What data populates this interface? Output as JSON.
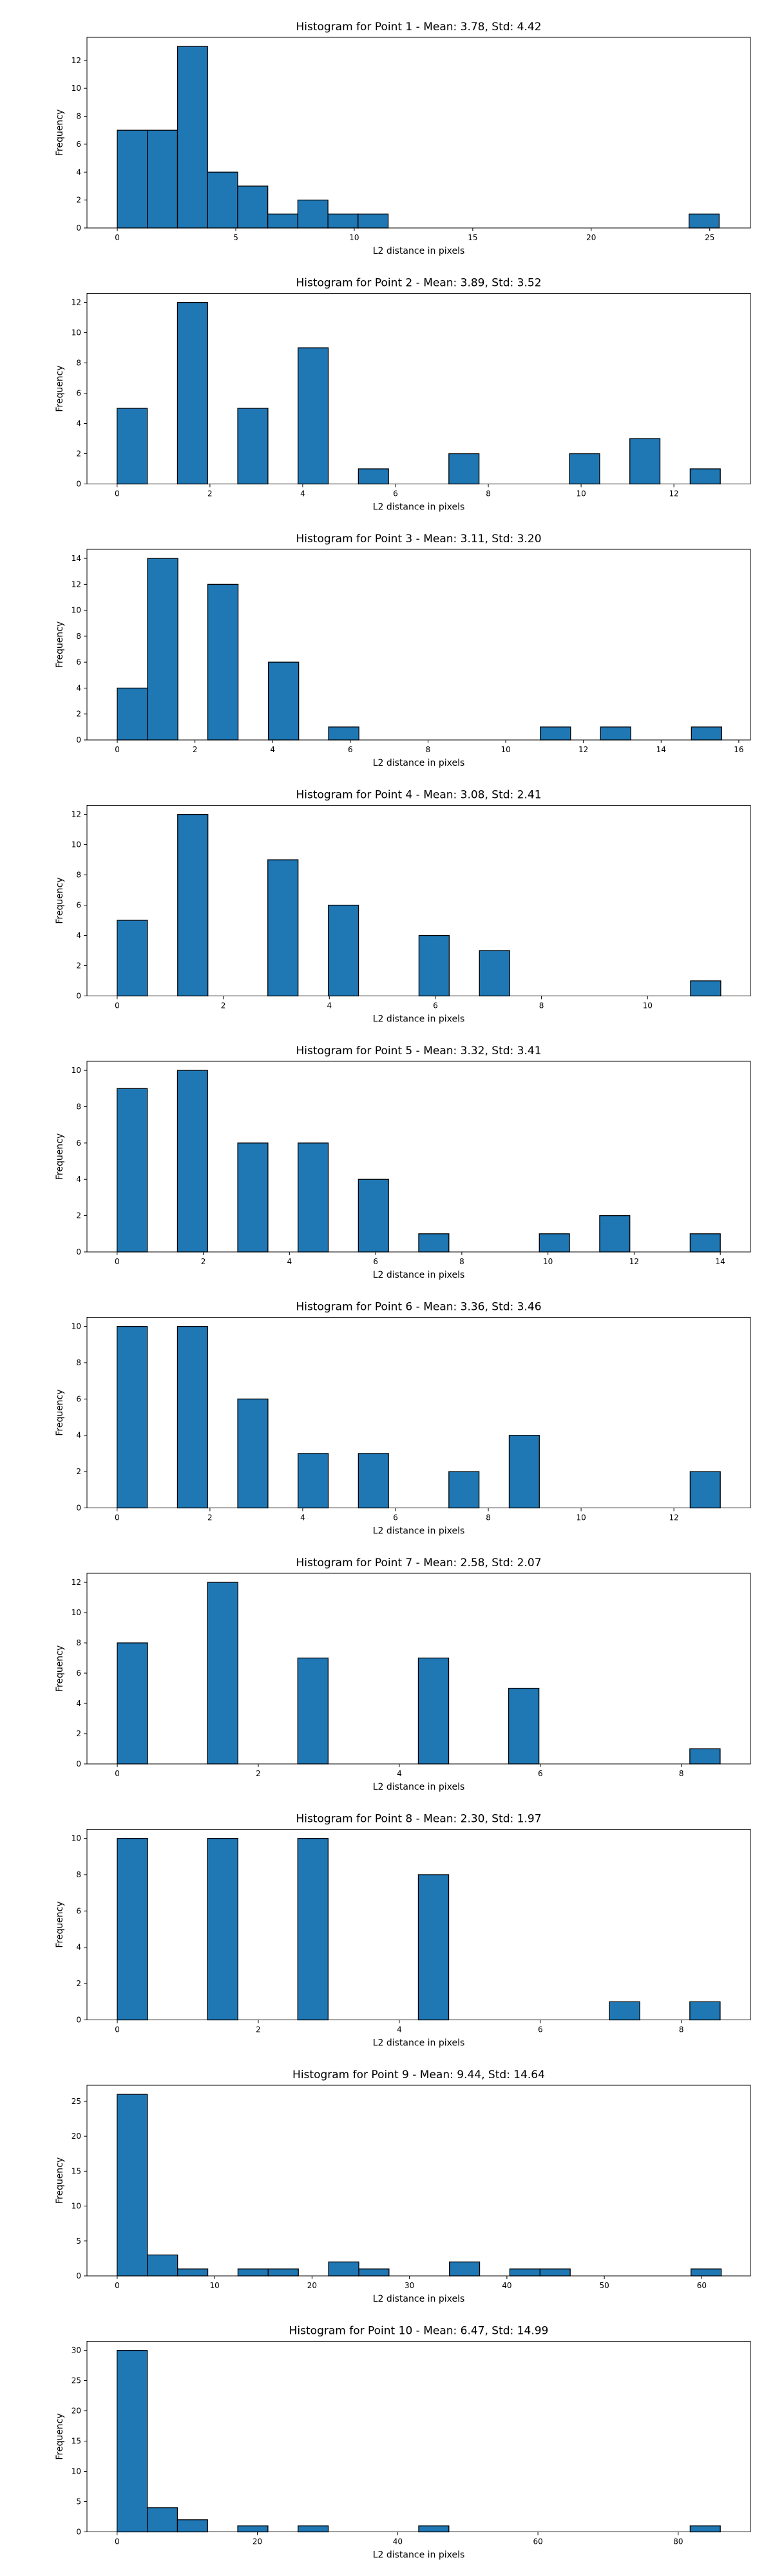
{
  "chart_data": [
    {
      "type": "bar",
      "title": "Histogram for Point 1 - Mean: 3.78, Std: 4.42",
      "xlabel": "L2 distance in pixels",
      "ylabel": "Frequency",
      "xlim": [
        -1.28,
        26.72
      ],
      "ylim": [
        0,
        13.65
      ],
      "xticks": [
        0,
        5,
        10,
        15,
        20,
        25
      ],
      "yticks": [
        0,
        2,
        4,
        6,
        8,
        10,
        12
      ],
      "bar_color": "#1f77b4",
      "edge_color": "#000000",
      "bins": [
        {
          "x0": 0.0,
          "x1": 1.27,
          "count": 7
        },
        {
          "x0": 1.27,
          "x1": 2.54,
          "count": 7
        },
        {
          "x0": 2.54,
          "x1": 3.81,
          "count": 13
        },
        {
          "x0": 3.81,
          "x1": 5.08,
          "count": 4
        },
        {
          "x0": 5.08,
          "x1": 6.35,
          "count": 3
        },
        {
          "x0": 6.35,
          "x1": 7.62,
          "count": 1
        },
        {
          "x0": 7.62,
          "x1": 8.89,
          "count": 2
        },
        {
          "x0": 8.89,
          "x1": 10.16,
          "count": 1
        },
        {
          "x0": 10.16,
          "x1": 11.43,
          "count": 1
        },
        {
          "x0": 24.13,
          "x1": 25.4,
          "count": 1
        }
      ]
    },
    {
      "type": "bar",
      "title": "Histogram for Point 2 - Mean: 3.89, Std: 3.52",
      "xlabel": "L2 distance in pixels",
      "ylabel": "Frequency",
      "xlim": [
        -0.65,
        13.65
      ],
      "ylim": [
        0,
        12.6
      ],
      "xticks": [
        0,
        2,
        4,
        6,
        8,
        10,
        12
      ],
      "yticks": [
        0,
        2,
        4,
        6,
        8,
        10,
        12
      ],
      "bar_color": "#1f77b4",
      "edge_color": "#000000",
      "bins": [
        {
          "x0": 0.0,
          "x1": 0.65,
          "count": 5
        },
        {
          "x0": 1.3,
          "x1": 1.95,
          "count": 12
        },
        {
          "x0": 2.6,
          "x1": 3.25,
          "count": 5
        },
        {
          "x0": 3.9,
          "x1": 4.55,
          "count": 9
        },
        {
          "x0": 5.2,
          "x1": 5.85,
          "count": 1
        },
        {
          "x0": 7.15,
          "x1": 7.8,
          "count": 2
        },
        {
          "x0": 9.75,
          "x1": 10.4,
          "count": 2
        },
        {
          "x0": 11.05,
          "x1": 11.7,
          "count": 3
        },
        {
          "x0": 12.35,
          "x1": 13.0,
          "count": 1
        }
      ]
    },
    {
      "type": "bar",
      "title": "Histogram for Point 3 - Mean: 3.11, Std: 3.20",
      "xlabel": "L2 distance in pixels",
      "ylabel": "Frequency",
      "xlim": [
        -0.78,
        16.3
      ],
      "ylim": [
        0,
        14.7
      ],
      "xticks": [
        0,
        2,
        4,
        6,
        8,
        10,
        12,
        14,
        16
      ],
      "yticks": [
        0,
        2,
        4,
        6,
        8,
        10,
        12,
        14
      ],
      "bar_color": "#1f77b4",
      "edge_color": "#000000",
      "bins": [
        {
          "x0": 0.0,
          "x1": 0.78,
          "count": 4
        },
        {
          "x0": 0.78,
          "x1": 1.56,
          "count": 14
        },
        {
          "x0": 2.33,
          "x1": 3.11,
          "count": 12
        },
        {
          "x0": 3.89,
          "x1": 4.67,
          "count": 6
        },
        {
          "x0": 5.44,
          "x1": 6.22,
          "count": 1
        },
        {
          "x0": 10.89,
          "x1": 11.67,
          "count": 1
        },
        {
          "x0": 12.44,
          "x1": 13.22,
          "count": 1
        },
        {
          "x0": 14.78,
          "x1": 15.56,
          "count": 1
        }
      ]
    },
    {
      "type": "bar",
      "title": "Histogram for Point 4 - Mean: 3.08, Std: 2.41",
      "xlabel": "L2 distance in pixels",
      "ylabel": "Frequency",
      "xlim": [
        -0.57,
        11.94
      ],
      "ylim": [
        0,
        12.6
      ],
      "xticks": [
        0,
        2,
        4,
        6,
        8,
        10
      ],
      "yticks": [
        0,
        2,
        4,
        6,
        8,
        10,
        12
      ],
      "bar_color": "#1f77b4",
      "edge_color": "#000000",
      "bins": [
        {
          "x0": 0.0,
          "x1": 0.57,
          "count": 5
        },
        {
          "x0": 1.14,
          "x1": 1.71,
          "count": 12
        },
        {
          "x0": 2.84,
          "x1": 3.41,
          "count": 9
        },
        {
          "x0": 3.98,
          "x1": 4.55,
          "count": 6
        },
        {
          "x0": 5.69,
          "x1": 6.26,
          "count": 4
        },
        {
          "x0": 6.83,
          "x1": 7.4,
          "count": 3
        },
        {
          "x0": 10.81,
          "x1": 11.38,
          "count": 1
        }
      ]
    },
    {
      "type": "bar",
      "title": "Histogram for Point 5 - Mean: 3.32, Std: 3.41",
      "xlabel": "L2 distance in pixels",
      "ylabel": "Frequency",
      "xlim": [
        -0.7,
        14.7
      ],
      "ylim": [
        0,
        10.5
      ],
      "xticks": [
        0,
        2,
        4,
        6,
        8,
        10,
        12,
        14
      ],
      "yticks": [
        0,
        2,
        4,
        6,
        8,
        10
      ],
      "bar_color": "#1f77b4",
      "edge_color": "#000000",
      "bins": [
        {
          "x0": 0.0,
          "x1": 0.7,
          "count": 9
        },
        {
          "x0": 1.4,
          "x1": 2.1,
          "count": 10
        },
        {
          "x0": 2.8,
          "x1": 3.5,
          "count": 6
        },
        {
          "x0": 4.2,
          "x1": 4.9,
          "count": 6
        },
        {
          "x0": 5.6,
          "x1": 6.3,
          "count": 4
        },
        {
          "x0": 7.0,
          "x1": 7.7,
          "count": 1
        },
        {
          "x0": 9.8,
          "x1": 10.5,
          "count": 1
        },
        {
          "x0": 11.2,
          "x1": 11.9,
          "count": 2
        },
        {
          "x0": 13.3,
          "x1": 14.0,
          "count": 1
        }
      ]
    },
    {
      "type": "bar",
      "title": "Histogram for Point 6 - Mean: 3.36, Std: 3.46",
      "xlabel": "L2 distance in pixels",
      "ylabel": "Frequency",
      "xlim": [
        -0.65,
        13.65
      ],
      "ylim": [
        0,
        10.5
      ],
      "xticks": [
        0,
        2,
        4,
        6,
        8,
        10,
        12
      ],
      "yticks": [
        0,
        2,
        4,
        6,
        8,
        10
      ],
      "bar_color": "#1f77b4",
      "edge_color": "#000000",
      "bins": [
        {
          "x0": 0.0,
          "x1": 0.65,
          "count": 10
        },
        {
          "x0": 1.3,
          "x1": 1.95,
          "count": 10
        },
        {
          "x0": 2.6,
          "x1": 3.25,
          "count": 6
        },
        {
          "x0": 3.9,
          "x1": 4.55,
          "count": 3
        },
        {
          "x0": 5.2,
          "x1": 5.85,
          "count": 3
        },
        {
          "x0": 7.15,
          "x1": 7.8,
          "count": 2
        },
        {
          "x0": 8.45,
          "x1": 9.1,
          "count": 4
        },
        {
          "x0": 12.35,
          "x1": 13.0,
          "count": 2
        }
      ]
    },
    {
      "type": "bar",
      "title": "Histogram for Point 7 - Mean: 2.58, Std: 2.07",
      "xlabel": "L2 distance in pixels",
      "ylabel": "Frequency",
      "xlim": [
        -0.43,
        8.98
      ],
      "ylim": [
        0,
        12.6
      ],
      "xticks": [
        0,
        2,
        4,
        6,
        8
      ],
      "yticks": [
        0,
        2,
        4,
        6,
        8,
        10,
        12
      ],
      "bar_color": "#1f77b4",
      "edge_color": "#000000",
      "bins": [
        {
          "x0": 0.0,
          "x1": 0.43,
          "count": 8
        },
        {
          "x0": 1.28,
          "x1": 1.71,
          "count": 12
        },
        {
          "x0": 2.56,
          "x1": 2.99,
          "count": 7
        },
        {
          "x0": 4.27,
          "x1": 4.7,
          "count": 7
        },
        {
          "x0": 5.55,
          "x1": 5.98,
          "count": 5
        },
        {
          "x0": 8.12,
          "x1": 8.55,
          "count": 1
        }
      ]
    },
    {
      "type": "bar",
      "title": "Histogram for Point 8 - Mean: 2.30, Std: 1.97",
      "xlabel": "L2 distance in pixels",
      "ylabel": "Frequency",
      "xlim": [
        -0.43,
        8.98
      ],
      "ylim": [
        0,
        10.5
      ],
      "xticks": [
        0,
        2,
        4,
        6,
        8
      ],
      "yticks": [
        0,
        2,
        4,
        6,
        8,
        10
      ],
      "bar_color": "#1f77b4",
      "edge_color": "#000000",
      "bins": [
        {
          "x0": 0.0,
          "x1": 0.43,
          "count": 10
        },
        {
          "x0": 1.28,
          "x1": 1.71,
          "count": 10
        },
        {
          "x0": 2.56,
          "x1": 2.99,
          "count": 10
        },
        {
          "x0": 4.27,
          "x1": 4.7,
          "count": 8
        },
        {
          "x0": 6.98,
          "x1": 7.41,
          "count": 1
        },
        {
          "x0": 8.12,
          "x1": 8.55,
          "count": 1
        }
      ]
    },
    {
      "type": "bar",
      "title": "Histogram for Point 9 - Mean: 9.44, Std: 14.64",
      "xlabel": "L2 distance in pixels",
      "ylabel": "Frequency",
      "xlim": [
        -3.1,
        65.0
      ],
      "ylim": [
        0,
        27.3
      ],
      "xticks": [
        0,
        10,
        20,
        30,
        40,
        50,
        60
      ],
      "yticks": [
        0,
        5,
        10,
        15,
        20,
        25
      ],
      "bar_color": "#1f77b4",
      "edge_color": "#000000",
      "bins": [
        {
          "x0": 0.0,
          "x1": 3.1,
          "count": 26
        },
        {
          "x0": 3.1,
          "x1": 6.2,
          "count": 3
        },
        {
          "x0": 6.2,
          "x1": 9.3,
          "count": 1
        },
        {
          "x0": 12.4,
          "x1": 15.5,
          "count": 1
        },
        {
          "x0": 15.5,
          "x1": 18.6,
          "count": 1
        },
        {
          "x0": 21.7,
          "x1": 24.8,
          "count": 2
        },
        {
          "x0": 24.8,
          "x1": 27.9,
          "count": 1
        },
        {
          "x0": 34.1,
          "x1": 37.2,
          "count": 2
        },
        {
          "x0": 40.3,
          "x1": 43.4,
          "count": 1
        },
        {
          "x0": 43.4,
          "x1": 46.5,
          "count": 1
        },
        {
          "x0": 58.9,
          "x1": 62.0,
          "count": 1
        }
      ]
    },
    {
      "type": "bar",
      "title": "Histogram for Point 10 - Mean: 6.47, Std: 14.99",
      "xlabel": "L2 distance in pixels",
      "ylabel": "Frequency",
      "xlim": [
        -4.3,
        90.3
      ],
      "ylim": [
        0,
        31.5
      ],
      "xticks": [
        0,
        20,
        40,
        60,
        80
      ],
      "yticks": [
        0,
        5,
        10,
        15,
        20,
        25,
        30
      ],
      "bar_color": "#1f77b4",
      "edge_color": "#000000",
      "bins": [
        {
          "x0": 0.0,
          "x1": 4.3,
          "count": 30
        },
        {
          "x0": 4.3,
          "x1": 8.6,
          "count": 4
        },
        {
          "x0": 8.6,
          "x1": 12.9,
          "count": 2
        },
        {
          "x0": 17.2,
          "x1": 21.5,
          "count": 1
        },
        {
          "x0": 25.8,
          "x1": 30.1,
          "count": 1
        },
        {
          "x0": 43.0,
          "x1": 47.3,
          "count": 1
        },
        {
          "x0": 81.7,
          "x1": 86.0,
          "count": 1
        }
      ]
    }
  ]
}
